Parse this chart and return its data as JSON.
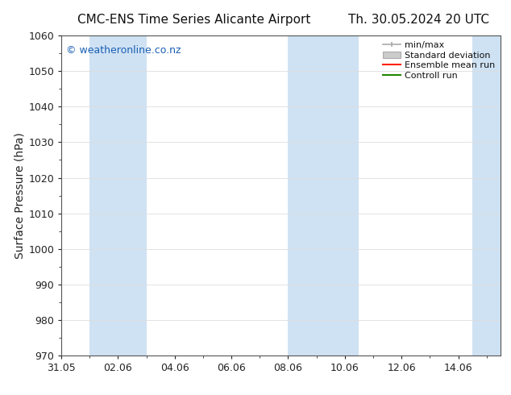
{
  "title_left": "CMC-ENS Time Series Alicante Airport",
  "title_right": "Th. 30.05.2024 20 UTC",
  "ylabel": "Surface Pressure (hPa)",
  "ylim": [
    970,
    1060
  ],
  "yticks": [
    970,
    980,
    990,
    1000,
    1010,
    1020,
    1030,
    1040,
    1050,
    1060
  ],
  "xtick_labels": [
    "31.05",
    "02.06",
    "04.06",
    "06.06",
    "08.06",
    "10.06",
    "12.06",
    "14.06"
  ],
  "xtick_positions": [
    0,
    2,
    4,
    6,
    8,
    10,
    12,
    14
  ],
  "watermark": "© weatheronline.co.nz",
  "watermark_color": "#1a5fb4",
  "background_color": "#ffffff",
  "plot_bg_color": "#ffffff",
  "shaded_bands": [
    {
      "x_start": 1,
      "x_end": 3,
      "color": "#cfe2f3"
    },
    {
      "x_start": 8,
      "x_end": 10.5,
      "color": "#cfe2f3"
    },
    {
      "x_start": 14.5,
      "x_end": 15.5,
      "color": "#cfe2f3"
    }
  ],
  "legend_entries": [
    {
      "label": "min/max",
      "color": "#aaaaaa",
      "style": "errorbar"
    },
    {
      "label": "Standard deviation",
      "color": "#cccccc",
      "style": "fill"
    },
    {
      "label": "Ensemble mean run",
      "color": "#ff0000",
      "style": "line"
    },
    {
      "label": "Controll run",
      "color": "#008800",
      "style": "line"
    }
  ],
  "title_fontsize": 11,
  "tick_fontsize": 9,
  "ylabel_fontsize": 10,
  "legend_fontsize": 8,
  "watermark_fontsize": 9,
  "grid_color": "#dddddd",
  "spine_color": "#555555",
  "xlim": [
    0,
    15.5
  ]
}
